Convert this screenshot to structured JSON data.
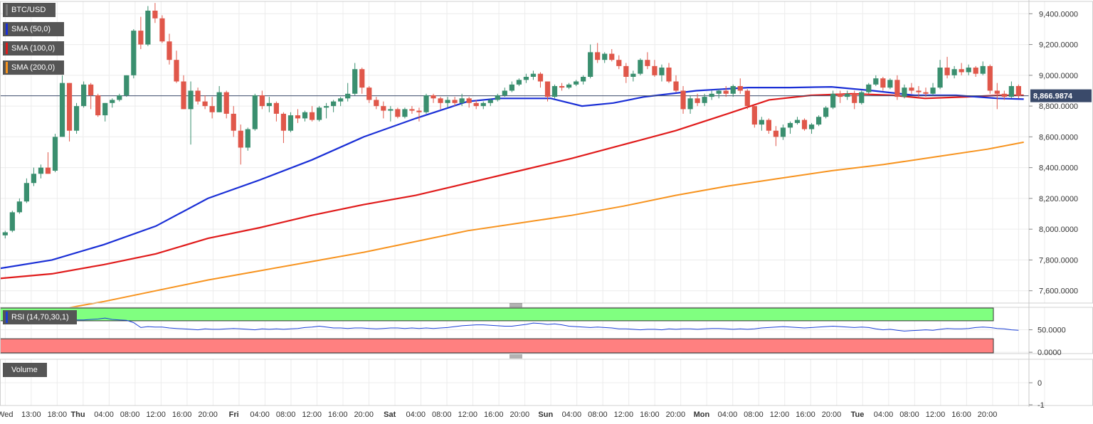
{
  "chart_data": {
    "type": "candlestick",
    "symbol": "BTC/USD",
    "colors": {
      "up": "#3a8f6f",
      "down": "#e0574a",
      "sma50": "#1a2fd6",
      "sma100": "#e01b1b",
      "sma200": "#f7931e",
      "rsi": "#1a3ed6",
      "rsi_over": "#80ff80",
      "rsi_under": "#ff8080"
    },
    "legend": [
      {
        "label": "BTC/USD",
        "color": "#555555"
      },
      {
        "label": "SMA (50,0)",
        "color": "#1a2fd6"
      },
      {
        "label": "SMA (100,0)",
        "color": "#e01b1b"
      },
      {
        "label": "SMA (200,0)",
        "color": "#f7931e"
      }
    ],
    "price_axis": {
      "ticks": [
        "9,400.0000",
        "9,200.0000",
        "9,000.0000",
        "8,800.0000",
        "8,600.0000",
        "8,400.0000",
        "8,200.0000",
        "8,000.0000",
        "7,800.0000",
        "7,600.0000"
      ],
      "tick_values": [
        9400,
        9200,
        9000,
        8800,
        8600,
        8400,
        8200,
        8000,
        7800,
        7600
      ],
      "ylim": [
        7520,
        9480
      ]
    },
    "current_price": {
      "label": "8,866.9874",
      "value": 8866.9874
    },
    "x_axis": {
      "tick_hours": [
        -11,
        -6,
        -1,
        4,
        9,
        14,
        19,
        24,
        29,
        34,
        39,
        44,
        49,
        54,
        59,
        64,
        69,
        74,
        79,
        84,
        89,
        94,
        99,
        104,
        109,
        114,
        119,
        124,
        129,
        134,
        139,
        144,
        149,
        154,
        159,
        164,
        169,
        174,
        179,
        184,
        189
      ],
      "tick_labels": [
        "Wed",
        "13:00",
        "18:00",
        "Thu",
        "04:00",
        "08:00",
        "12:00",
        "16:00",
        "20:00",
        "Fri",
        "04:00",
        "08:00",
        "12:00",
        "16:00",
        "20:00",
        "Sat",
        "04:00",
        "08:00",
        "12:00",
        "16:00",
        "20:00",
        "Sun",
        "04:00",
        "08:00",
        "12:00",
        "16:00",
        "20:00",
        "Mon",
        "04:00",
        "08:00",
        "12:00",
        "16:00",
        "20:00",
        "Tue",
        "04:00",
        "08:00",
        "12:00",
        "16:00",
        "20:00"
      ],
      "label_hours": [
        -11,
        -6,
        -1,
        3,
        8,
        13,
        18,
        23,
        28,
        33,
        38,
        43,
        48,
        53,
        58,
        63,
        68,
        73,
        78,
        83,
        88,
        93,
        98,
        103,
        108,
        113,
        118,
        123,
        128,
        133,
        138,
        143,
        148,
        153,
        158,
        163,
        168,
        173,
        178
      ],
      "bold_labels": [
        "Thu",
        "Fri",
        "Sat",
        "Sun",
        "Mon",
        "Tue"
      ],
      "xlim": [
        -12,
        186
      ]
    },
    "candles": [
      [
        7960,
        7990,
        7940,
        7980
      ],
      [
        7990,
        8120,
        7980,
        8110
      ],
      [
        8110,
        8200,
        8100,
        8180
      ],
      [
        8180,
        8330,
        8170,
        8300
      ],
      [
        8300,
        8400,
        8280,
        8360
      ],
      [
        8360,
        8420,
        8330,
        8400
      ],
      [
        8400,
        8500,
        8360,
        8360
      ],
      [
        8380,
        8620,
        8370,
        8600
      ],
      [
        8600,
        9000,
        8600,
        8950
      ],
      [
        8950,
        8950,
        8570,
        8640
      ],
      [
        8640,
        8820,
        8620,
        8800
      ],
      [
        8800,
        8960,
        8790,
        8940
      ],
      [
        8940,
        8950,
        8780,
        8870
      ],
      [
        8870,
        8880,
        8730,
        8740
      ],
      [
        8740,
        8820,
        8700,
        8820
      ],
      [
        8820,
        8850,
        8790,
        8840
      ],
      [
        8840,
        8880,
        8830,
        8870
      ],
      [
        8870,
        9000,
        8860,
        9000
      ],
      [
        9000,
        9300,
        8980,
        9290
      ],
      [
        9290,
        9380,
        9170,
        9200
      ],
      [
        9200,
        9450,
        9190,
        9420
      ],
      [
        9420,
        9470,
        9340,
        9370
      ],
      [
        9370,
        9390,
        9210,
        9220
      ],
      [
        9220,
        9270,
        9070,
        9100
      ],
      [
        9100,
        9160,
        8950,
        8960
      ],
      [
        8960,
        9000,
        8780,
        8780
      ],
      [
        8780,
        8960,
        8550,
        8900
      ],
      [
        8900,
        8920,
        8810,
        8830
      ],
      [
        8830,
        8870,
        8780,
        8800
      ],
      [
        8800,
        8860,
        8720,
        8760
      ],
      [
        8760,
        8930,
        8760,
        8890
      ],
      [
        8890,
        8900,
        8720,
        8750
      ],
      [
        8750,
        8800,
        8600,
        8640
      ],
      [
        8640,
        8680,
        8420,
        8530
      ],
      [
        8530,
        8660,
        8510,
        8650
      ],
      [
        8650,
        8880,
        8640,
        8870
      ],
      [
        8870,
        8900,
        8780,
        8800
      ],
      [
        8800,
        8860,
        8760,
        8820
      ],
      [
        8820,
        8830,
        8700,
        8750
      ],
      [
        8750,
        8760,
        8560,
        8640
      ],
      [
        8640,
        8760,
        8630,
        8740
      ],
      [
        8740,
        8780,
        8690,
        8720
      ],
      [
        8720,
        8770,
        8700,
        8760
      ],
      [
        8760,
        8800,
        8700,
        8710
      ],
      [
        8710,
        8800,
        8700,
        8790
      ],
      [
        8790,
        8820,
        8720,
        8800
      ],
      [
        8800,
        8840,
        8760,
        8830
      ],
      [
        8830,
        8860,
        8800,
        8850
      ],
      [
        8850,
        8950,
        8830,
        8880
      ],
      [
        8880,
        9080,
        8870,
        9040
      ],
      [
        9040,
        9050,
        8880,
        8920
      ],
      [
        8920,
        8930,
        8820,
        8840
      ],
      [
        8840,
        8860,
        8780,
        8800
      ],
      [
        8800,
        8830,
        8720,
        8770
      ],
      [
        8770,
        8800,
        8700,
        8780
      ],
      [
        8780,
        8790,
        8720,
        8730
      ],
      [
        8730,
        8790,
        8720,
        8780
      ],
      [
        8780,
        8800,
        8750,
        8770
      ],
      [
        8770,
        8790,
        8700,
        8760
      ],
      [
        8760,
        8880,
        8750,
        8870
      ],
      [
        8870,
        8880,
        8820,
        8850
      ],
      [
        8850,
        8860,
        8780,
        8820
      ],
      [
        8820,
        8860,
        8790,
        8840
      ],
      [
        8840,
        8860,
        8800,
        8820
      ],
      [
        8820,
        8880,
        8800,
        8850
      ],
      [
        8850,
        8860,
        8790,
        8820
      ],
      [
        8820,
        8840,
        8780,
        8800
      ],
      [
        8800,
        8830,
        8780,
        8820
      ],
      [
        8820,
        8850,
        8800,
        8840
      ],
      [
        8840,
        8880,
        8830,
        8870
      ],
      [
        8870,
        8920,
        8860,
        8900
      ],
      [
        8900,
        8960,
        8890,
        8940
      ],
      [
        8940,
        8980,
        8930,
        8970
      ],
      [
        8970,
        9010,
        8950,
        8990
      ],
      [
        8990,
        9030,
        8970,
        9010
      ],
      [
        9010,
        9020,
        8920,
        8960
      ],
      [
        8960,
        8960,
        8830,
        8860
      ],
      [
        8860,
        8940,
        8850,
        8930
      ],
      [
        8930,
        8950,
        8900,
        8920
      ],
      [
        8920,
        8950,
        8910,
        8940
      ],
      [
        8940,
        8970,
        8930,
        8960
      ],
      [
        8960,
        9000,
        8940,
        8990
      ],
      [
        8990,
        9200,
        8980,
        9150
      ],
      [
        9150,
        9210,
        9080,
        9100
      ],
      [
        9100,
        9150,
        9080,
        9140
      ],
      [
        9140,
        9170,
        9090,
        9100
      ],
      [
        9100,
        9130,
        9040,
        9060
      ],
      [
        9060,
        9080,
        8950,
        8990
      ],
      [
        8990,
        9030,
        8960,
        9010
      ],
      [
        9010,
        9110,
        9000,
        9100
      ],
      [
        9100,
        9150,
        9040,
        9060
      ],
      [
        9060,
        9100,
        8990,
        9000
      ],
      [
        9000,
        9070,
        8960,
        9050
      ],
      [
        9050,
        9080,
        8950,
        8960
      ],
      [
        8960,
        9000,
        8890,
        8900
      ],
      [
        8900,
        8930,
        8750,
        8780
      ],
      [
        8780,
        8870,
        8750,
        8850
      ],
      [
        8850,
        8880,
        8800,
        8820
      ],
      [
        8820,
        8880,
        8800,
        8860
      ],
      [
        8860,
        8900,
        8840,
        8880
      ],
      [
        8880,
        8910,
        8850,
        8900
      ],
      [
        8900,
        8930,
        8860,
        8880
      ],
      [
        8880,
        8940,
        8860,
        8930
      ],
      [
        8930,
        8980,
        8880,
        8900
      ],
      [
        8900,
        8910,
        8780,
        8800
      ],
      [
        8800,
        8800,
        8660,
        8680
      ],
      [
        8680,
        8730,
        8640,
        8710
      ],
      [
        8710,
        8720,
        8620,
        8640
      ],
      [
        8640,
        8670,
        8540,
        8600
      ],
      [
        8600,
        8680,
        8580,
        8660
      ],
      [
        8660,
        8700,
        8620,
        8690
      ],
      [
        8690,
        8730,
        8680,
        8710
      ],
      [
        8710,
        8720,
        8640,
        8650
      ],
      [
        8650,
        8690,
        8620,
        8680
      ],
      [
        8680,
        8740,
        8670,
        8730
      ],
      [
        8730,
        8800,
        8720,
        8790
      ],
      [
        8790,
        8900,
        8780,
        8880
      ],
      [
        8880,
        8900,
        8820,
        8860
      ],
      [
        8860,
        8900,
        8840,
        8880
      ],
      [
        8880,
        8900,
        8780,
        8820
      ],
      [
        8820,
        8900,
        8810,
        8890
      ],
      [
        8890,
        8950,
        8880,
        8940
      ],
      [
        8940,
        9000,
        8930,
        8980
      ],
      [
        8980,
        8990,
        8900,
        8920
      ],
      [
        8920,
        8980,
        8910,
        8970
      ],
      [
        8970,
        9000,
        8840,
        8860
      ],
      [
        8860,
        8940,
        8850,
        8920
      ],
      [
        8920,
        8950,
        8880,
        8900
      ],
      [
        8900,
        8930,
        8860,
        8890
      ],
      [
        8890,
        8920,
        8860,
        8880
      ],
      [
        8880,
        8950,
        8870,
        8920
      ],
      [
        8920,
        9100,
        8910,
        9050
      ],
      [
        9050,
        9120,
        8980,
        9000
      ],
      [
        9000,
        9060,
        8980,
        9040
      ],
      [
        9040,
        9080,
        9000,
        9020
      ],
      [
        9020,
        9070,
        9000,
        9050
      ],
      [
        9050,
        9060,
        8990,
        9010
      ],
      [
        9010,
        9090,
        9000,
        9060
      ],
      [
        9060,
        9070,
        8880,
        8900
      ],
      [
        8900,
        8950,
        8780,
        8880
      ],
      [
        8880,
        8900,
        8840,
        8860
      ],
      [
        8860,
        8960,
        8850,
        8930
      ],
      [
        8930,
        8940,
        8850,
        8866.99
      ]
    ],
    "sma50": [
      [
        -12,
        7745
      ],
      [
        -2,
        7800
      ],
      [
        8,
        7900
      ],
      [
        18,
        8020
      ],
      [
        28,
        8200
      ],
      [
        38,
        8320
      ],
      [
        48,
        8450
      ],
      [
        58,
        8600
      ],
      [
        68,
        8720
      ],
      [
        78,
        8830
      ],
      [
        84,
        8850
      ],
      [
        94,
        8850
      ],
      [
        100,
        8800
      ],
      [
        106,
        8820
      ],
      [
        112,
        8860
      ],
      [
        122,
        8900
      ],
      [
        132,
        8920
      ],
      [
        140,
        8920
      ],
      [
        148,
        8925
      ],
      [
        156,
        8900
      ],
      [
        164,
        8870
      ],
      [
        172,
        8870
      ],
      [
        180,
        8850
      ],
      [
        185,
        8845
      ]
    ],
    "sma100": [
      [
        -12,
        7680
      ],
      [
        -2,
        7710
      ],
      [
        8,
        7770
      ],
      [
        18,
        7840
      ],
      [
        28,
        7940
      ],
      [
        38,
        8010
      ],
      [
        48,
        8090
      ],
      [
        58,
        8160
      ],
      [
        68,
        8220
      ],
      [
        78,
        8300
      ],
      [
        88,
        8380
      ],
      [
        98,
        8460
      ],
      [
        108,
        8550
      ],
      [
        118,
        8640
      ],
      [
        128,
        8750
      ],
      [
        136,
        8840
      ],
      [
        144,
        8870
      ],
      [
        152,
        8880
      ],
      [
        160,
        8870
      ],
      [
        166,
        8850
      ],
      [
        174,
        8860
      ],
      [
        180,
        8870
      ],
      [
        185,
        8870
      ]
    ],
    "sma200": [
      [
        -12,
        7425
      ],
      [
        -2,
        7470
      ],
      [
        8,
        7530
      ],
      [
        18,
        7600
      ],
      [
        28,
        7670
      ],
      [
        38,
        7730
      ],
      [
        48,
        7790
      ],
      [
        58,
        7850
      ],
      [
        68,
        7920
      ],
      [
        78,
        7990
      ],
      [
        88,
        8040
      ],
      [
        98,
        8090
      ],
      [
        108,
        8150
      ],
      [
        118,
        8220
      ],
      [
        128,
        8280
      ],
      [
        138,
        8330
      ],
      [
        148,
        8380
      ],
      [
        158,
        8420
      ],
      [
        168,
        8470
      ],
      [
        178,
        8520
      ],
      [
        185,
        8565
      ]
    ],
    "rsi": {
      "label": "RSI (14,70,30,1)",
      "axis_ticks": [
        "50.0000",
        "0.0000"
      ],
      "tick_values": [
        50,
        0
      ],
      "ylim": [
        -3,
        100
      ],
      "levels": [
        70,
        30
      ],
      "values": [
        72,
        72,
        73,
        73,
        74,
        75,
        76,
        76,
        75,
        74,
        72,
        72,
        73,
        74,
        76,
        73,
        72,
        71,
        66,
        55,
        57,
        56,
        56,
        54,
        53,
        52,
        51,
        50,
        52,
        51,
        51,
        52,
        53,
        52,
        51,
        50,
        52,
        51,
        52,
        51,
        52,
        53,
        55,
        56,
        58,
        56,
        54,
        54,
        53,
        54,
        54,
        53,
        52,
        53,
        54,
        54,
        53,
        54,
        53,
        54,
        53,
        54,
        55,
        57,
        59,
        60,
        61,
        61,
        60,
        59,
        58,
        58,
        60,
        62,
        65,
        64,
        62,
        63,
        61,
        58,
        57,
        56,
        55,
        56,
        55,
        54,
        52,
        52,
        51,
        50,
        51,
        51,
        50,
        52,
        51,
        52,
        52,
        51,
        52,
        53,
        53,
        52,
        51,
        52,
        51,
        52,
        54,
        55,
        56,
        57,
        56,
        55,
        54,
        55,
        56,
        57,
        58,
        57,
        56,
        55,
        56,
        55,
        52,
        50,
        51,
        49,
        47,
        48,
        49,
        50,
        49,
        51,
        53,
        52,
        52,
        53,
        55,
        56,
        55,
        53,
        52,
        50,
        49
      ]
    },
    "volume": {
      "label": "Volume",
      "axis_ticks": [
        "0",
        "-1"
      ],
      "tick_values": [
        0,
        -1
      ]
    }
  }
}
